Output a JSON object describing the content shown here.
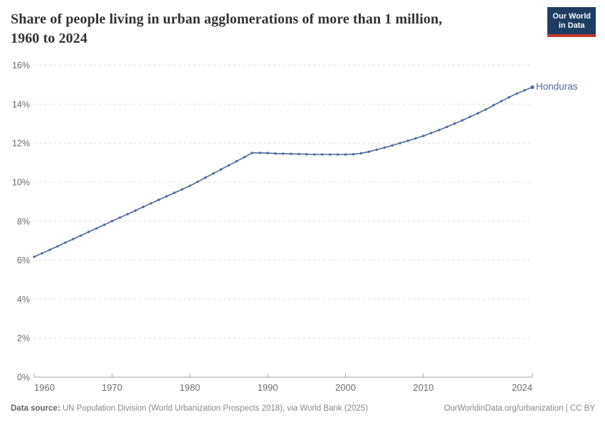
{
  "header": {
    "title_line1": "Share of people living in urban agglomerations of more than 1 million,",
    "title_line2": "1960 to 2024",
    "logo": {
      "line1": "Our World",
      "line2": "in Data",
      "bg_color": "#1d3d63",
      "accent_color": "#c0392b"
    }
  },
  "chart_data": {
    "type": "line",
    "title": "Share of people living in urban agglomerations of more than 1 million, 1960 to 2024",
    "xlabel": "",
    "ylabel": "",
    "xlim": [
      1960,
      2024
    ],
    "ylim": [
      0,
      16
    ],
    "grid": "horizontal-dashed",
    "legend_position": "end-of-line-label",
    "yticks": [
      {
        "value": 0,
        "label": "0%"
      },
      {
        "value": 2,
        "label": "2%"
      },
      {
        "value": 4,
        "label": "4%"
      },
      {
        "value": 6,
        "label": "6%"
      },
      {
        "value": 8,
        "label": "8%"
      },
      {
        "value": 10,
        "label": "10%"
      },
      {
        "value": 12,
        "label": "12%"
      },
      {
        "value": 14,
        "label": "14%"
      },
      {
        "value": 16,
        "label": "16%"
      }
    ],
    "xticks": [
      {
        "value": 1960,
        "label": "1960"
      },
      {
        "value": 1970,
        "label": "1970"
      },
      {
        "value": 1980,
        "label": "1980"
      },
      {
        "value": 1990,
        "label": "1990"
      },
      {
        "value": 2000,
        "label": "2000"
      },
      {
        "value": 2010,
        "label": "2010"
      },
      {
        "value": 2024,
        "label": "2024"
      }
    ],
    "series": [
      {
        "name": "Honduras",
        "color": "#4c6a9c",
        "x": [
          1960,
          1961,
          1962,
          1963,
          1964,
          1965,
          1966,
          1967,
          1968,
          1969,
          1970,
          1971,
          1972,
          1973,
          1974,
          1975,
          1976,
          1977,
          1978,
          1979,
          1980,
          1981,
          1982,
          1983,
          1984,
          1985,
          1986,
          1987,
          1988,
          1989,
          1990,
          1991,
          1992,
          1993,
          1994,
          1995,
          1996,
          1997,
          1998,
          1999,
          2000,
          2001,
          2002,
          2003,
          2004,
          2005,
          2006,
          2007,
          2008,
          2009,
          2010,
          2011,
          2012,
          2013,
          2014,
          2015,
          2016,
          2017,
          2018,
          2019,
          2020,
          2021,
          2022,
          2023,
          2024
        ],
        "values": [
          6.17,
          6.35,
          6.53,
          6.71,
          6.9,
          7.08,
          7.26,
          7.45,
          7.63,
          7.81,
          8.0,
          8.18,
          8.36,
          8.54,
          8.73,
          8.91,
          9.09,
          9.27,
          9.45,
          9.63,
          9.81,
          10.02,
          10.23,
          10.44,
          10.65,
          10.86,
          11.07,
          11.28,
          11.5,
          11.5,
          11.49,
          11.47,
          11.46,
          11.45,
          11.44,
          11.43,
          11.42,
          11.42,
          11.42,
          11.42,
          11.42,
          11.43,
          11.48,
          11.56,
          11.66,
          11.77,
          11.88,
          12.0,
          12.12,
          12.24,
          12.37,
          12.52,
          12.67,
          12.83,
          13.0,
          13.17,
          13.35,
          13.53,
          13.72,
          13.94,
          14.15,
          14.35,
          14.54,
          14.71,
          14.87
        ]
      }
    ]
  },
  "footer": {
    "source_label": "Data source:",
    "source_text": "UN Population Division (World Urbanization Prospects 2018), via World Bank (2025)",
    "url_text": "OurWorldinData.org/urbanization",
    "license_text": "| CC BY"
  },
  "colors": {
    "line": "#4c6a9c",
    "grid": "#dcdcdc",
    "axis": "#a3a3a3",
    "tick_label": "#6b6b6b"
  }
}
